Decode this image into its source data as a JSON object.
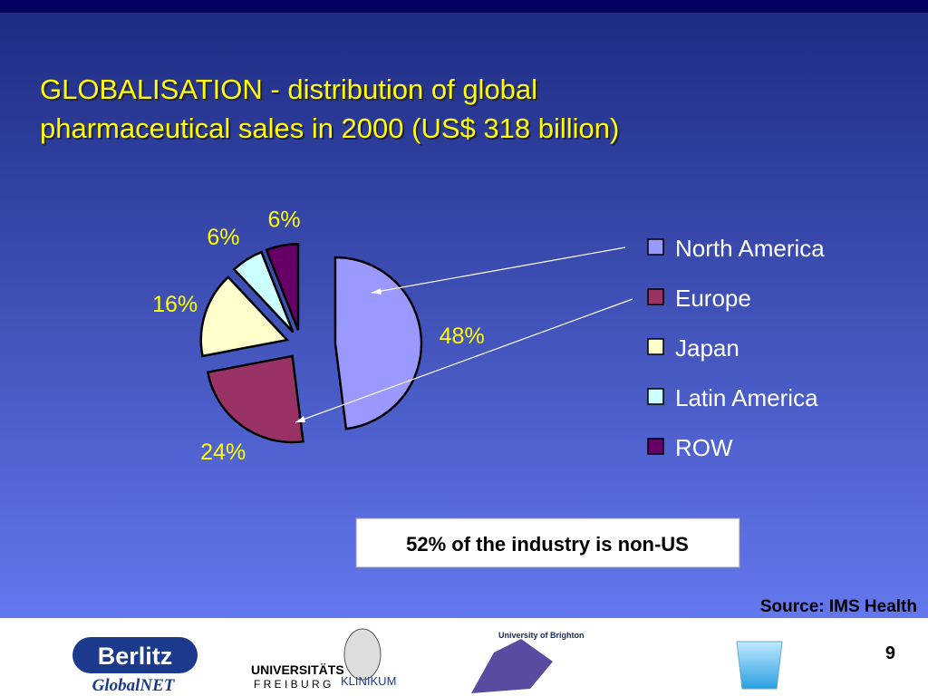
{
  "chart_data": {
    "type": "pie",
    "title": [
      "GLOBALISATION - distribution of global",
      "pharmaceutical sales in 2000 (US$ 318 billion)"
    ],
    "categories": [
      "North America",
      "Europe",
      "Japan",
      "Latin America",
      "ROW"
    ],
    "values": [
      48,
      24,
      16,
      6,
      6
    ],
    "value_labels": [
      "48%",
      "24%",
      "16%",
      "6%",
      "6%"
    ],
    "colors": [
      "#9999ff",
      "#993366",
      "#ffffcc",
      "#ccffff",
      "#660066"
    ],
    "legend": "right",
    "annotation": "52% of the industry is non-US",
    "source": "Source: IMS Health"
  },
  "slide": {
    "page_number": "9",
    "logos": {
      "berlitz": "Berlitz",
      "globalnet": "GlobalNET",
      "universitaets": "UNIVERSITÄTS",
      "freiburg": "F R E I B U R G",
      "klinikum": "KLINIKUM",
      "brighton": "University of Brighton"
    }
  }
}
